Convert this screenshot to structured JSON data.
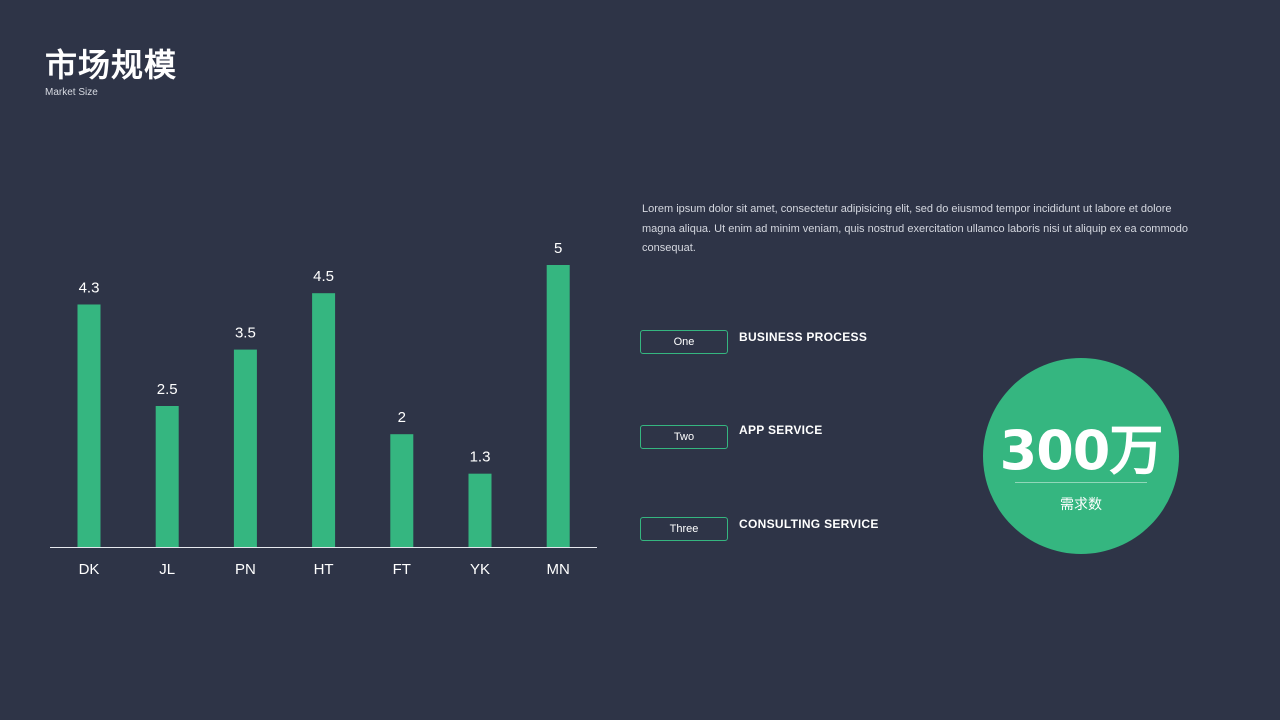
{
  "header": {
    "title": "市场规模",
    "subtitle": "Market Size"
  },
  "description": "Lorem ipsum dolor sit amet, consectetur adipisicing elit, sed do eiusmod tempor incididunt ut labore et dolore magna aliqua. Ut enim ad minim veniam, quis nostrud exercitation ullamco laboris nisi ut aliquip ex ea commodo consequat.",
  "services": [
    {
      "tag": "One",
      "label": "BUSINESS PROCESS"
    },
    {
      "tag": "Two",
      "label": "APP SERVICE"
    },
    {
      "tag": "Three",
      "label": "CONSULTING SERVICE"
    }
  ],
  "stat": {
    "value": "300万",
    "label": "需求数"
  },
  "colors": {
    "background": "#2e3447",
    "accent": "#35b680"
  },
  "chart_data": {
    "type": "bar",
    "categories": [
      "DK",
      "JL",
      "PN",
      "HT",
      "FT",
      "YK",
      "MN"
    ],
    "values": [
      4.3,
      2.5,
      3.5,
      4.5,
      2,
      1.3,
      5
    ],
    "value_labels": [
      "4.3",
      "2.5",
      "3.5",
      "4.5",
      "2",
      "1.3",
      "5"
    ],
    "ylim": [
      0,
      5
    ],
    "grid": false,
    "data_labels": true
  }
}
